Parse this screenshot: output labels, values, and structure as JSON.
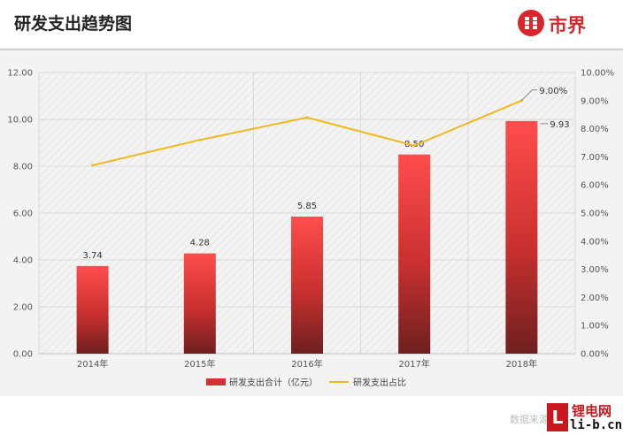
{
  "page": {
    "title": "研发支出趋势图"
  },
  "brand": {
    "name": "市界",
    "color": "#d8262a"
  },
  "footer": {
    "source": "数据来源：Wind",
    "stamp_mark": "L",
    "stamp_cn": "锂电网",
    "stamp_en": "li-b.cn"
  },
  "colors": {
    "bar_top": "#ff4d4d",
    "bar_bottom": "#6e1f1f",
    "line": "#f0b81e",
    "grid": "#d9d9d9"
  },
  "chart_data": {
    "type": "bar",
    "categories": [
      "2014年",
      "2015年",
      "2016年",
      "2017年",
      "2018年"
    ],
    "series": [
      {
        "name": "研发支出合计（亿元）",
        "type": "bar",
        "axis": "left",
        "values": [
          3.74,
          4.28,
          5.85,
          8.5,
          9.93
        ],
        "labels": [
          "3.74",
          "4.28",
          "5.85",
          "8.50",
          "9.93"
        ]
      },
      {
        "name": "研发支出占比",
        "type": "line",
        "axis": "right",
        "values": [
          6.7,
          7.6,
          8.4,
          7.4,
          9.0
        ],
        "labels": [
          "",
          "",
          "",
          "",
          "9.00%"
        ]
      }
    ],
    "ylim": [
      0,
      12
    ],
    "y_ticks": [
      "0.00",
      "2.00",
      "4.00",
      "6.00",
      "8.00",
      "10.00",
      "12.00"
    ],
    "y2lim": [
      0,
      10
    ],
    "y2_ticks": [
      "0.00%",
      "1.00%",
      "2.00%",
      "3.00%",
      "4.00%",
      "5.00%",
      "6.00%",
      "7.00%",
      "8.00%",
      "9.00%",
      "10.00%"
    ],
    "grid": true,
    "legend_position": "bottom"
  }
}
